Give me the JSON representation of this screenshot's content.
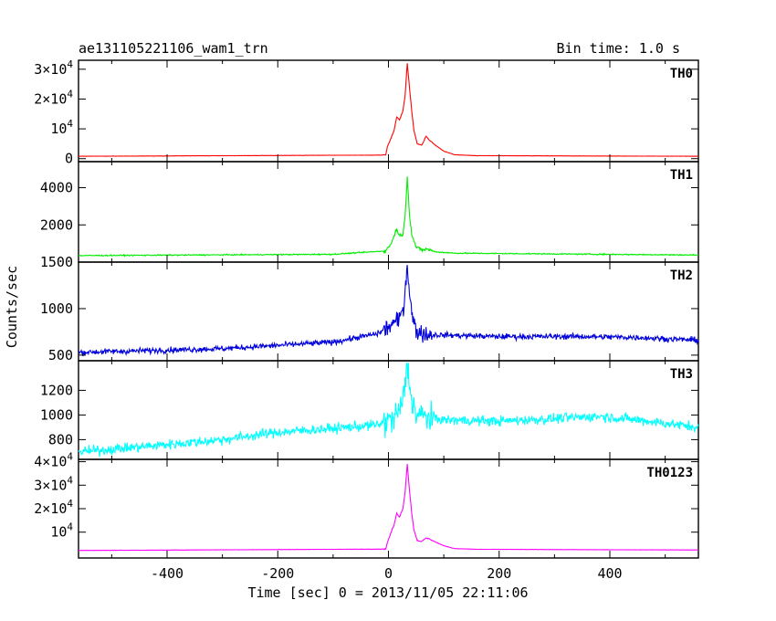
{
  "chart_data": {
    "type": "line",
    "title": "ae131105221106_wam1_trn",
    "subtitle": "Bin time: 1.0 s",
    "xlabel": "Time [sec] 0 = 2013/11/05 22:11:06",
    "ylabel": "Counts/sec",
    "xlim": [
      -560,
      560
    ],
    "x_ticks": [
      -400,
      -200,
      0,
      200,
      400
    ],
    "grid": false,
    "panels": [
      {
        "label": "TH0",
        "color": "#ff0000",
        "ylim": [
          -1000,
          33000
        ],
        "y_ticks": [
          {
            "value": 0,
            "label": "0"
          },
          {
            "value": 10000,
            "label": "10^4"
          },
          {
            "value": 20000,
            "label": "2×10^4"
          },
          {
            "value": 30000,
            "label": "3×10^4"
          }
        ],
        "baseline_start": 800,
        "baseline_end": 800,
        "noise": 40,
        "peak_x": 34,
        "peak_y": 32000,
        "points": [
          [
            -560,
            800
          ],
          [
            -5,
            1200
          ],
          [
            -2,
            4000
          ],
          [
            5,
            7000
          ],
          [
            10,
            9500
          ],
          [
            15,
            14000
          ],
          [
            20,
            13000
          ],
          [
            26,
            16000
          ],
          [
            30,
            21000
          ],
          [
            34,
            32000
          ],
          [
            38,
            24000
          ],
          [
            42,
            16000
          ],
          [
            46,
            9500
          ],
          [
            52,
            5000
          ],
          [
            60,
            4500
          ],
          [
            68,
            7500
          ],
          [
            75,
            6000
          ],
          [
            85,
            4500
          ],
          [
            100,
            2500
          ],
          [
            120,
            1300
          ],
          [
            160,
            1000
          ],
          [
            560,
            800
          ]
        ]
      },
      {
        "label": "TH1",
        "color": "#00ee00",
        "ylim": [
          0,
          5400
        ],
        "y_ticks": [
          {
            "value": 2000,
            "label": "2000"
          },
          {
            "value": 4000,
            "label": "4000"
          }
        ],
        "baseline_start": 350,
        "baseline_end": 380,
        "noise": 30,
        "peak_x": 34,
        "peak_y": 4600,
        "points": [
          [
            -560,
            350
          ],
          [
            -100,
            420
          ],
          [
            -5,
            600
          ],
          [
            5,
            1000
          ],
          [
            10,
            1400
          ],
          [
            15,
            1800
          ],
          [
            20,
            1400
          ],
          [
            26,
            1500
          ],
          [
            30,
            2400
          ],
          [
            34,
            4600
          ],
          [
            38,
            2600
          ],
          [
            42,
            1500
          ],
          [
            50,
            800
          ],
          [
            60,
            650
          ],
          [
            70,
            700
          ],
          [
            85,
            550
          ],
          [
            120,
            480
          ],
          [
            560,
            380
          ]
        ]
      },
      {
        "label": "TH2",
        "color": "#0000dd",
        "ylim": [
          440,
          1500
        ],
        "y_ticks": [
          {
            "value": 500,
            "label": "500"
          },
          {
            "value": 1000,
            "label": "1000"
          },
          {
            "value": 1500,
            "label": "1500"
          }
        ],
        "baseline_start": 530,
        "baseline_end": 660,
        "noise": 30,
        "peak_x": 34,
        "peak_y": 1470,
        "points": [
          [
            -560,
            530
          ],
          [
            -300,
            570
          ],
          [
            -100,
            640
          ],
          [
            -20,
            730
          ],
          [
            0,
            800
          ],
          [
            10,
            850
          ],
          [
            20,
            880
          ],
          [
            28,
            1050
          ],
          [
            34,
            1470
          ],
          [
            38,
            1200
          ],
          [
            42,
            950
          ],
          [
            50,
            760
          ],
          [
            70,
            720
          ],
          [
            200,
            700
          ],
          [
            350,
            700
          ],
          [
            450,
            690
          ],
          [
            560,
            660
          ]
        ]
      },
      {
        "label": "TH3",
        "color": "#00ffff",
        "ylim": [
          640,
          1440
        ],
        "y_ticks": [
          {
            "value": 800,
            "label": "800"
          },
          {
            "value": 1000,
            "label": "1000"
          },
          {
            "value": 1200,
            "label": "1200"
          }
        ],
        "baseline_start": 700,
        "baseline_end": 900,
        "noise": 40,
        "peak_x": 34,
        "peak_y": 1410,
        "points": [
          [
            -560,
            700
          ],
          [
            -400,
            760
          ],
          [
            -300,
            800
          ],
          [
            -200,
            860
          ],
          [
            -100,
            890
          ],
          [
            -20,
            920
          ],
          [
            10,
            970
          ],
          [
            25,
            1080
          ],
          [
            34,
            1410
          ],
          [
            40,
            1180
          ],
          [
            50,
            1000
          ],
          [
            100,
            960
          ],
          [
            200,
            950
          ],
          [
            300,
            970
          ],
          [
            380,
            990
          ],
          [
            450,
            960
          ],
          [
            560,
            900
          ]
        ]
      },
      {
        "label": "TH0123",
        "color": "#ff00ff",
        "ylim": [
          -1000,
          41000
        ],
        "y_ticks": [
          {
            "value": 10000,
            "label": "10^4"
          },
          {
            "value": 20000,
            "label": "2×10^4"
          },
          {
            "value": 30000,
            "label": "3×10^4"
          },
          {
            "value": 40000,
            "label": "4×10^4"
          }
        ],
        "baseline_start": 2200,
        "baseline_end": 2400,
        "noise": 60,
        "peak_x": 34,
        "peak_y": 39000,
        "points": [
          [
            -560,
            2200
          ],
          [
            -5,
            2800
          ],
          [
            -2,
            5500
          ],
          [
            5,
            10000
          ],
          [
            10,
            13000
          ],
          [
            15,
            18000
          ],
          [
            20,
            16500
          ],
          [
            26,
            20000
          ],
          [
            30,
            27000
          ],
          [
            34,
            39000
          ],
          [
            38,
            28000
          ],
          [
            42,
            18000
          ],
          [
            46,
            11000
          ],
          [
            52,
            6500
          ],
          [
            60,
            6000
          ],
          [
            68,
            7500
          ],
          [
            75,
            7000
          ],
          [
            85,
            5800
          ],
          [
            100,
            4200
          ],
          [
            120,
            3000
          ],
          [
            160,
            2700
          ],
          [
            560,
            2400
          ]
        ]
      }
    ]
  }
}
